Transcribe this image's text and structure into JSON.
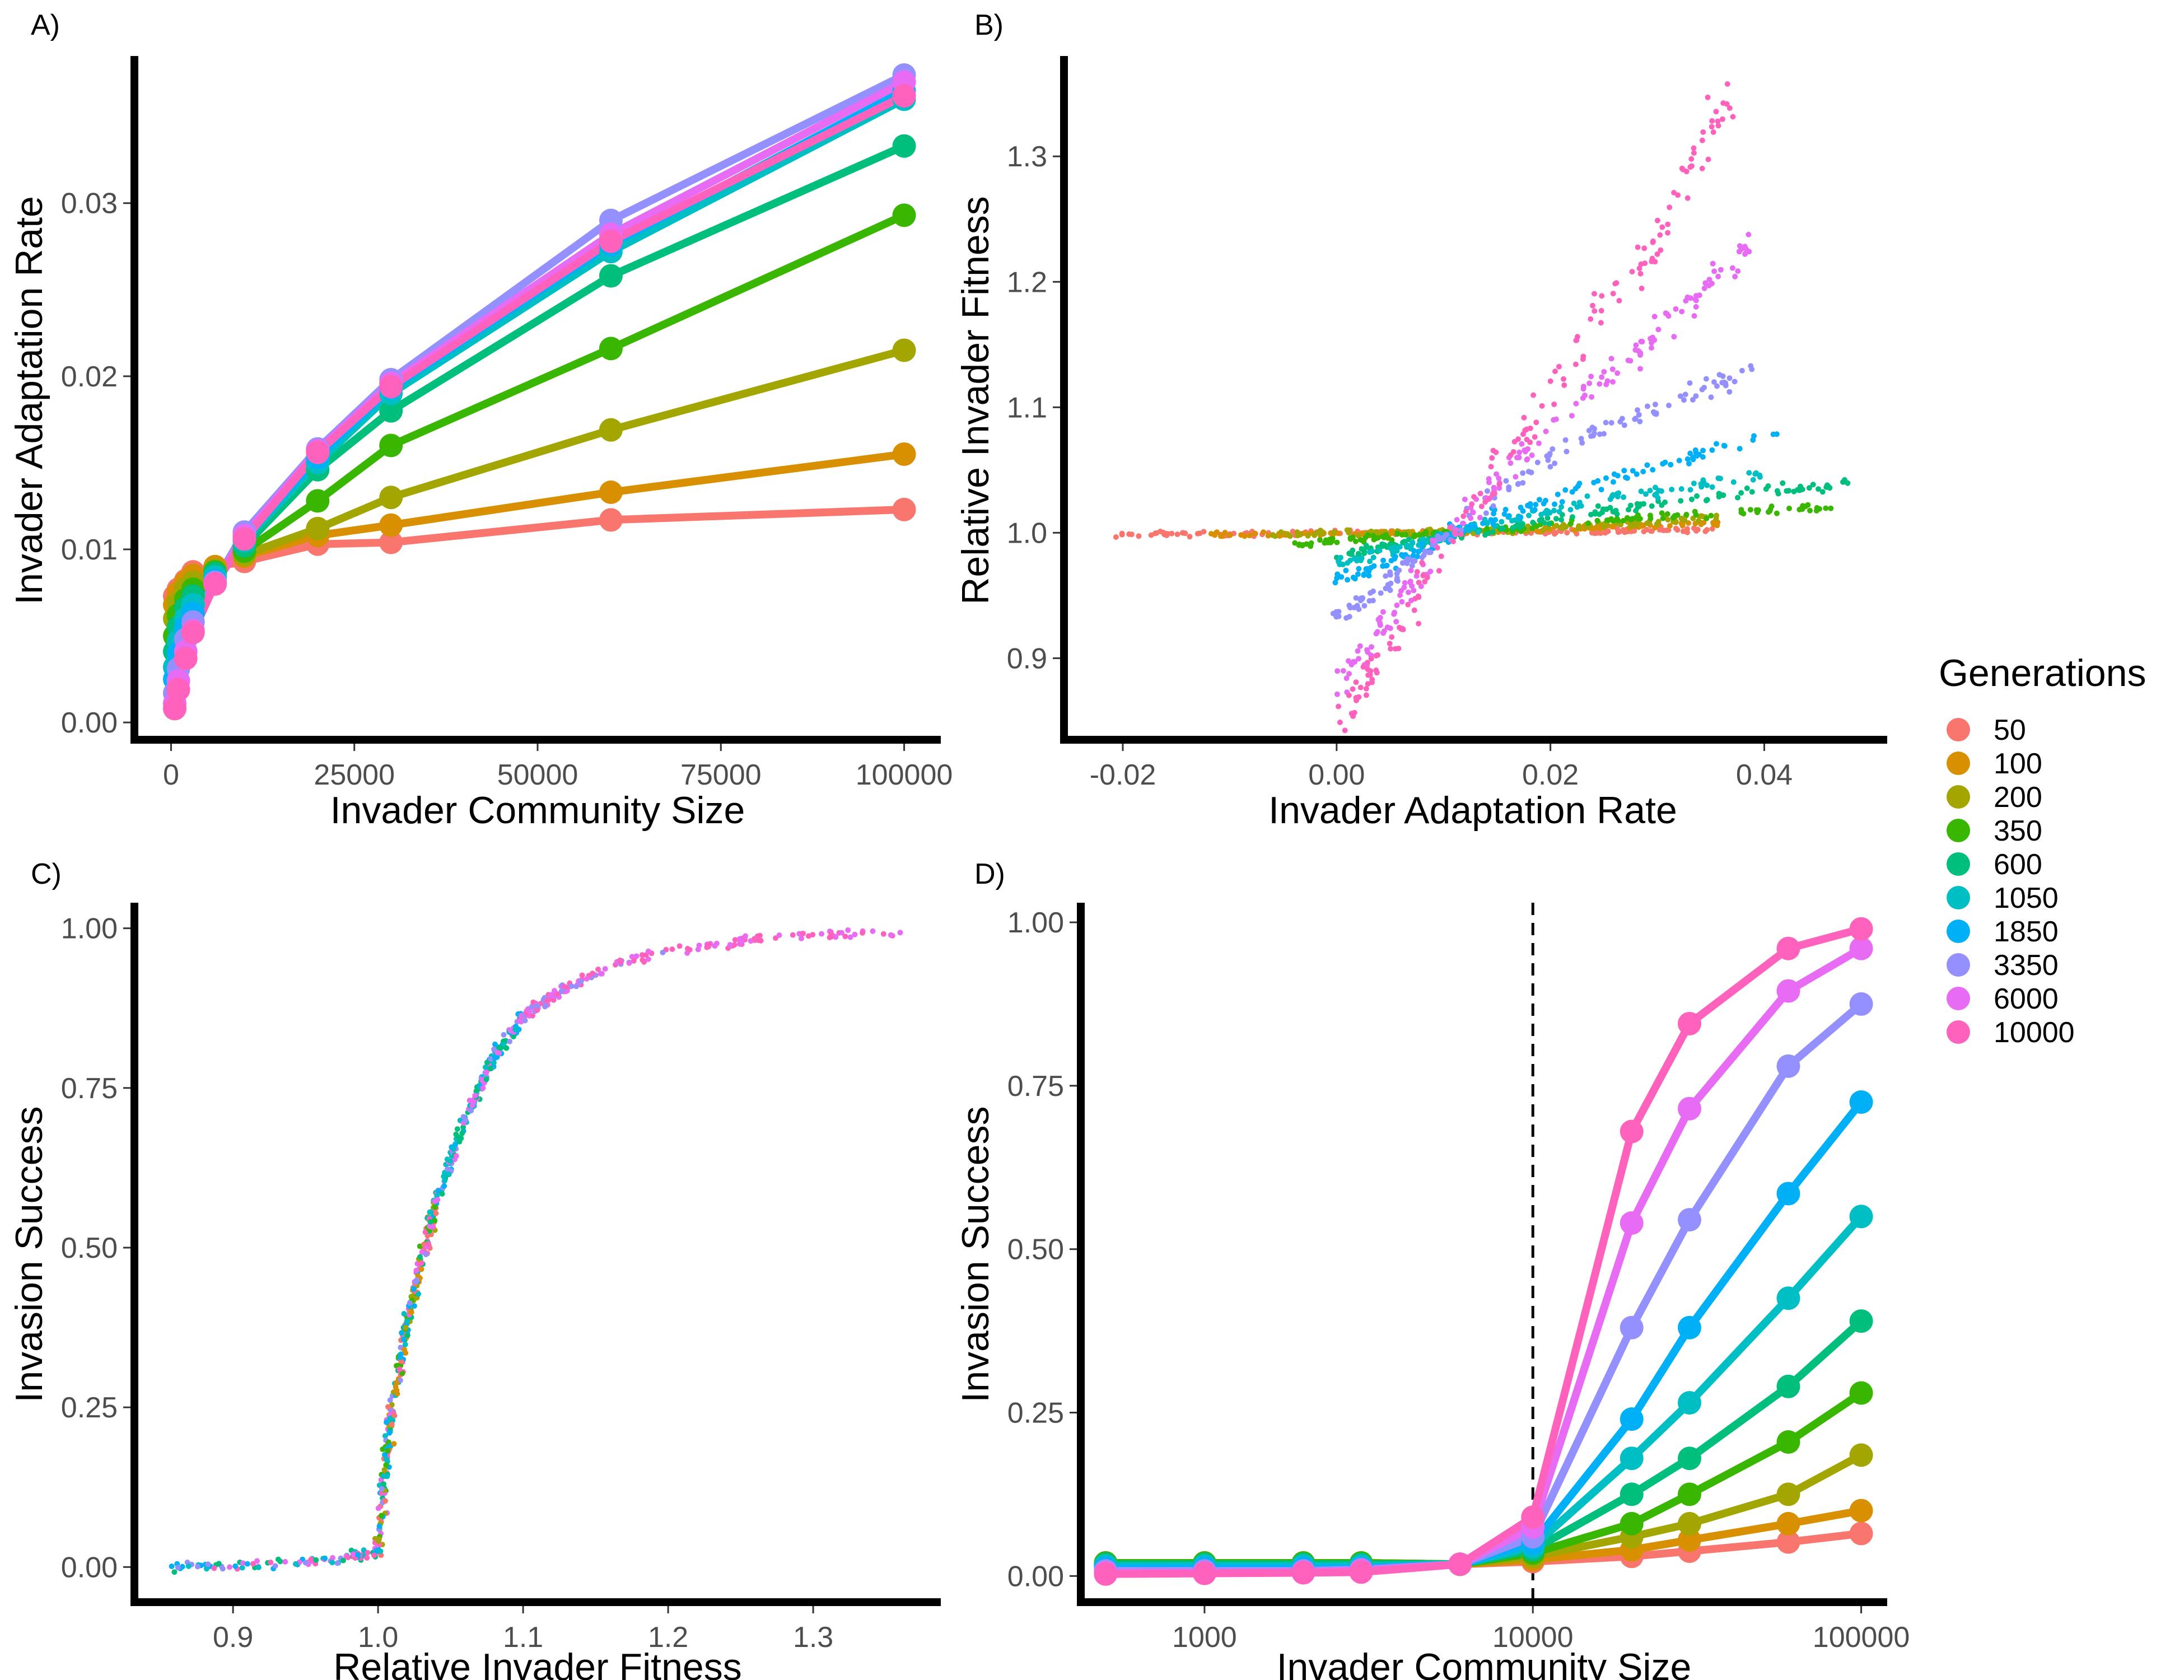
{
  "legend": {
    "title": "Generations",
    "colors": [
      "#F8766D",
      "#D89000",
      "#A3A500",
      "#39B600",
      "#00BF7D",
      "#00BFC4",
      "#00B0F6",
      "#9590FF",
      "#E76BF3",
      "#FF62BC"
    ]
  },
  "chart_data": [
    {
      "id": "A",
      "panel_label": "A)",
      "type": "line",
      "xlabel": "Invader Community Size",
      "ylabel": "Invader Adaptation Rate",
      "xlim": [
        -5000,
        105000
      ],
      "ylim": [
        -0.001,
        0.0385
      ],
      "xticks": [
        0,
        25000,
        50000,
        75000,
        100000
      ],
      "yticks": [
        0.0,
        0.01,
        0.02,
        0.03
      ],
      "x": [
        500,
        1000,
        2000,
        3000,
        6000,
        10000,
        20000,
        30000,
        60000,
        100000
      ],
      "series": [
        {
          "name": "50",
          "values": [
            0.0073,
            0.0077,
            0.0082,
            0.0087,
            0.009,
            0.0093,
            0.0103,
            0.0104,
            0.0117,
            0.0123
          ]
        },
        {
          "name": "100",
          "values": [
            0.0068,
            0.0075,
            0.0081,
            0.0085,
            0.009,
            0.0096,
            0.0108,
            0.0114,
            0.0133,
            0.0155
          ]
        },
        {
          "name": "200",
          "values": [
            0.006,
            0.0069,
            0.0077,
            0.0081,
            0.0088,
            0.0097,
            0.0112,
            0.013,
            0.0169,
            0.0215
          ]
        },
        {
          "name": "350",
          "values": [
            0.005,
            0.0062,
            0.0071,
            0.0077,
            0.0087,
            0.0099,
            0.0128,
            0.016,
            0.0216,
            0.0293
          ]
        },
        {
          "name": "600",
          "values": [
            0.0041,
            0.0055,
            0.0066,
            0.0073,
            0.0086,
            0.0102,
            0.0146,
            0.018,
            0.0258,
            0.0333
          ]
        },
        {
          "name": "1050",
          "values": [
            0.0032,
            0.0047,
            0.006,
            0.0068,
            0.0084,
            0.0105,
            0.015,
            0.019,
            0.0272,
            0.036
          ]
        },
        {
          "name": "1850",
          "values": [
            0.0025,
            0.004,
            0.0055,
            0.0063,
            0.0082,
            0.0107,
            0.0153,
            0.0193,
            0.0276,
            0.0365
          ]
        },
        {
          "name": "3350",
          "values": [
            0.0017,
            0.0031,
            0.0048,
            0.0058,
            0.0081,
            0.011,
            0.0158,
            0.0198,
            0.029,
            0.0374
          ]
        },
        {
          "name": "6000",
          "values": [
            0.0011,
            0.0024,
            0.0041,
            0.0053,
            0.008,
            0.0108,
            0.0157,
            0.0196,
            0.0282,
            0.037
          ]
        },
        {
          "name": "10000",
          "values": [
            0.0008,
            0.0019,
            0.0037,
            0.0052,
            0.008,
            0.0106,
            0.0156,
            0.0194,
            0.0278,
            0.0362
          ]
        }
      ]
    },
    {
      "id": "B",
      "panel_label": "B)",
      "type": "scatter",
      "xlabel": "Invader Adaptation Rate",
      "ylabel": "Relative Invader Fitness",
      "xlim": [
        -0.0255,
        0.0515
      ],
      "ylim": [
        0.835,
        1.38
      ],
      "xticks": [
        -0.02,
        0.0,
        0.02,
        0.04
      ],
      "yticks": [
        0.9,
        1.0,
        1.1,
        1.2,
        1.3
      ],
      "points_note": "approximate point clouds per series",
      "series": [
        {
          "name": "50",
          "x": [
            -0.021,
            -0.015,
            -0.008,
            -0.002,
            0.004,
            0.01,
            0.015,
            0.02,
            0.025,
            0.03,
            0.036
          ],
          "y": [
            0.998,
            0.999,
            0.999,
            1.0,
            1.0,
            1.0,
            1.0,
            1.001,
            1.001,
            1.002,
            1.003
          ]
        },
        {
          "name": "100",
          "x": [
            -0.012,
            -0.005,
            0.002,
            0.008,
            0.013,
            0.019,
            0.024,
            0.03,
            0.036
          ],
          "y": [
            0.999,
            0.999,
            1.0,
            1.0,
            1.001,
            1.002,
            1.004,
            1.006,
            1.008
          ]
        },
        {
          "name": "200",
          "x": [
            -0.006,
            0.0,
            0.006,
            0.012,
            0.018,
            0.024,
            0.03,
            0.036
          ],
          "y": [
            0.999,
            1.0,
            1.0,
            1.001,
            1.003,
            1.006,
            1.01,
            1.013
          ]
        },
        {
          "name": "350",
          "x": [
            -0.004,
            0.0,
            0.005,
            0.01,
            0.016,
            0.022,
            0.03,
            0.04,
            0.046
          ],
          "y": [
            0.99,
            0.994,
            0.997,
            1.0,
            1.003,
            1.008,
            1.013,
            1.018,
            1.02
          ]
        },
        {
          "name": "600",
          "x": [
            0.0,
            0.004,
            0.008,
            0.012,
            0.018,
            0.025,
            0.033,
            0.042,
            0.048
          ],
          "y": [
            0.982,
            0.988,
            0.994,
            1.0,
            1.008,
            1.017,
            1.026,
            1.036,
            1.04
          ]
        },
        {
          "name": "1050",
          "x": [
            0.0,
            0.004,
            0.008,
            0.012,
            0.018,
            0.025,
            0.032,
            0.04
          ],
          "y": [
            0.975,
            0.983,
            0.992,
            1.002,
            1.014,
            1.026,
            1.036,
            1.045
          ]
        },
        {
          "name": "1850",
          "x": [
            0.0,
            0.004,
            0.008,
            0.012,
            0.018,
            0.025,
            0.033,
            0.041
          ],
          "y": [
            0.962,
            0.973,
            0.985,
            1.005,
            1.022,
            1.04,
            1.06,
            1.08
          ]
        },
        {
          "name": "3350",
          "x": [
            0.0,
            0.003,
            0.006,
            0.01,
            0.015,
            0.021,
            0.027,
            0.034,
            0.041
          ],
          "y": [
            0.93,
            0.95,
            0.972,
            0.995,
            1.03,
            1.065,
            1.09,
            1.115,
            1.14
          ]
        },
        {
          "name": "6000",
          "x": [
            0.0,
            0.003,
            0.006,
            0.01,
            0.015,
            0.02,
            0.026,
            0.03,
            0.035,
            0.039
          ],
          "y": [
            0.88,
            0.91,
            0.945,
            0.99,
            1.04,
            1.09,
            1.13,
            1.16,
            1.2,
            1.23
          ]
        },
        {
          "name": "10000",
          "x": [
            0.0,
            0.003,
            0.006,
            0.01,
            0.015,
            0.02,
            0.025,
            0.03,
            0.034,
            0.037
          ],
          "y": [
            0.855,
            0.885,
            0.925,
            0.985,
            1.05,
            1.11,
            1.18,
            1.23,
            1.305,
            1.345
          ]
        }
      ]
    },
    {
      "id": "C",
      "panel_label": "C)",
      "type": "scatter",
      "xlabel": "Relative Invader Fitness",
      "ylabel": "Invasion Success",
      "xlim": [
        0.832,
        1.388
      ],
      "ylim": [
        -0.055,
        1.04
      ],
      "xticks": [
        0.9,
        1.0,
        1.1,
        1.2,
        1.3
      ],
      "yticks": [
        0.0,
        0.25,
        0.5,
        0.75,
        1.0
      ],
      "x": [
        0.855,
        0.9,
        0.95,
        0.98,
        1.0,
        1.005,
        1.01,
        1.02,
        1.03,
        1.04,
        1.06,
        1.08,
        1.1,
        1.13,
        1.16,
        1.2,
        1.25,
        1.3,
        1.36
      ],
      "values": [
        0.0,
        0.003,
        0.008,
        0.015,
        0.02,
        0.15,
        0.25,
        0.38,
        0.48,
        0.57,
        0.7,
        0.8,
        0.86,
        0.91,
        0.94,
        0.965,
        0.98,
        0.99,
        0.995
      ]
    },
    {
      "id": "D",
      "panel_label": "D)",
      "type": "line",
      "xscale": "log",
      "xlabel": "Invader Community Size",
      "ylabel": "Invasion Success",
      "xlim": [
        420,
        120000
      ],
      "ylim": [
        -0.04,
        1.03
      ],
      "xticks": [
        1000,
        10000,
        100000
      ],
      "yticks": [
        0.0,
        0.25,
        0.5,
        0.75,
        1.0
      ],
      "vline": 10000,
      "x": [
        500,
        1000,
        2000,
        3000,
        6000,
        10000,
        20000,
        30000,
        60000,
        100000
      ],
      "series": [
        {
          "name": "50",
          "values": [
            0.02,
            0.02,
            0.02,
            0.02,
            0.018,
            0.022,
            0.03,
            0.038,
            0.052,
            0.065
          ]
        },
        {
          "name": "100",
          "values": [
            0.02,
            0.02,
            0.02,
            0.02,
            0.018,
            0.025,
            0.04,
            0.055,
            0.08,
            0.1
          ]
        },
        {
          "name": "200",
          "values": [
            0.02,
            0.02,
            0.02,
            0.02,
            0.018,
            0.03,
            0.06,
            0.08,
            0.125,
            0.185
          ]
        },
        {
          "name": "350",
          "values": [
            0.02,
            0.02,
            0.02,
            0.02,
            0.018,
            0.035,
            0.08,
            0.125,
            0.205,
            0.28
          ]
        },
        {
          "name": "600",
          "values": [
            0.018,
            0.018,
            0.018,
            0.018,
            0.018,
            0.04,
            0.125,
            0.18,
            0.29,
            0.39
          ]
        },
        {
          "name": "1050",
          "values": [
            0.015,
            0.015,
            0.015,
            0.015,
            0.018,
            0.045,
            0.18,
            0.265,
            0.425,
            0.55
          ]
        },
        {
          "name": "1850",
          "values": [
            0.012,
            0.012,
            0.012,
            0.012,
            0.018,
            0.05,
            0.24,
            0.38,
            0.585,
            0.725
          ]
        },
        {
          "name": "3350",
          "values": [
            0.008,
            0.008,
            0.008,
            0.01,
            0.018,
            0.06,
            0.38,
            0.545,
            0.78,
            0.875
          ]
        },
        {
          "name": "6000",
          "values": [
            0.005,
            0.005,
            0.006,
            0.008,
            0.018,
            0.075,
            0.54,
            0.715,
            0.895,
            0.96
          ]
        },
        {
          "name": "10000",
          "values": [
            0.003,
            0.004,
            0.005,
            0.006,
            0.018,
            0.09,
            0.68,
            0.845,
            0.96,
            0.99
          ]
        }
      ]
    }
  ]
}
